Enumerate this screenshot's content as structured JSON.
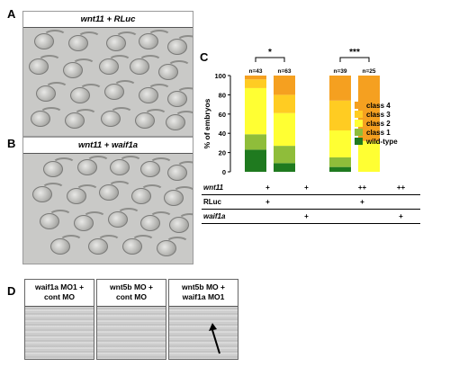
{
  "panels": {
    "a": {
      "letter": "A",
      "title_gene": "wnt11",
      "title_rest": " + RLuc"
    },
    "b": {
      "letter": "B",
      "title_gene": "wnt11",
      "title_mid": " + ",
      "title_gene2": "waif1a"
    },
    "c": {
      "letter": "C"
    },
    "d": {
      "letter": "D"
    }
  },
  "chart_data": {
    "type": "bar",
    "stacked": true,
    "ylabel": "% of embryos",
    "ylim": [
      0,
      100
    ],
    "yticks": [
      0,
      20,
      40,
      60,
      80,
      100
    ],
    "categories": [
      "wnt11 + RLuc",
      "wnt11 + waif1a",
      "wnt11 ++ RLuc",
      "wnt11 ++ waif1a"
    ],
    "n_labels": [
      "n=43",
      "n=63",
      "n=39",
      "n=25"
    ],
    "series": [
      {
        "name": "wild-type",
        "color": "#1f7a1f",
        "values": [
          23,
          9,
          5,
          0
        ]
      },
      {
        "name": "class 1",
        "color": "#8fbd3a",
        "values": [
          16,
          18,
          10,
          0
        ]
      },
      {
        "name": "class 2",
        "color": "#ffff33",
        "values": [
          48,
          34,
          28,
          32
        ]
      },
      {
        "name": "class 3",
        "color": "#ffcc22",
        "values": [
          9,
          19,
          31,
          0
        ]
      },
      {
        "name": "class 4",
        "color": "#f5a020",
        "values": [
          4,
          20,
          26,
          68
        ]
      }
    ],
    "significance": [
      {
        "groups": [
          0,
          1
        ],
        "label": "*"
      },
      {
        "groups": [
          2,
          3
        ],
        "label": "***"
      }
    ],
    "legend_order": [
      "class 4",
      "class 3",
      "class 2",
      "class 1",
      "wild-type"
    ],
    "genotype_table": {
      "rows": [
        {
          "gene": "wnt11",
          "italic": true,
          "cells": [
            "+",
            "+",
            "++",
            "++"
          ]
        },
        {
          "gene": "RLuc",
          "italic": false,
          "cells": [
            "+",
            "",
            "+",
            ""
          ]
        },
        {
          "gene": "waif1a",
          "italic": true,
          "cells": [
            "",
            "+",
            "",
            "+"
          ]
        }
      ]
    }
  },
  "panel_d": [
    {
      "line1": "waif1a MO1 +",
      "line2": "cont MO"
    },
    {
      "line1": "wnt5b MO +",
      "line2": "cont MO"
    },
    {
      "line1": "wnt5b MO +",
      "line2": "waif1a MO1"
    }
  ]
}
